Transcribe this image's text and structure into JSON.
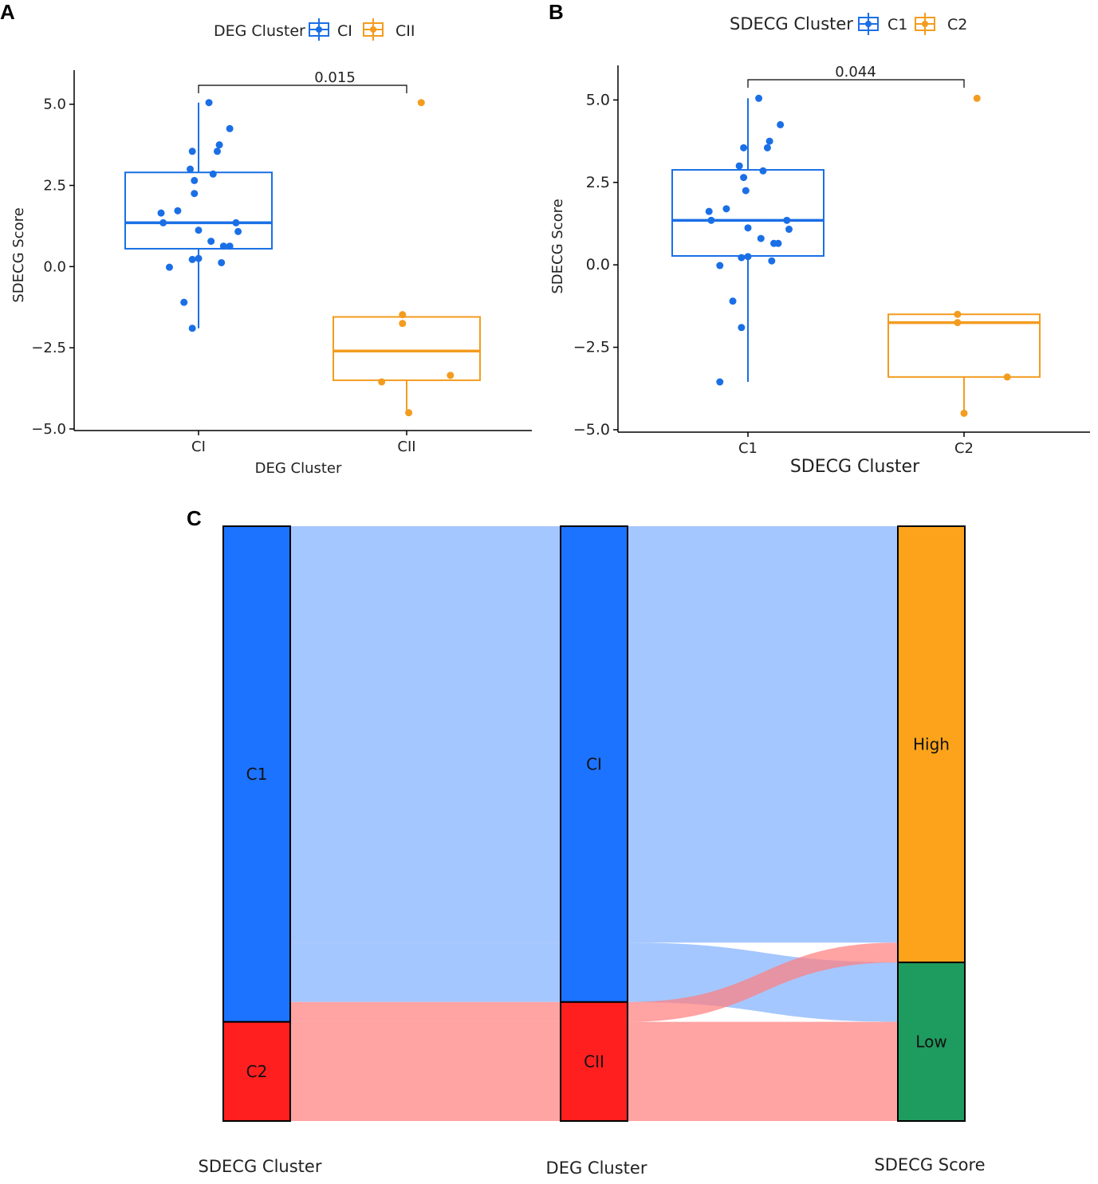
{
  "colors": {
    "blue": "#1A6FE6",
    "orange": "#F39C1F",
    "flow_blue": "#82B1FF",
    "flow_red": "#FF8080",
    "node_blue": "#1C73FF",
    "node_red": "#FF1F1F",
    "node_orange": "#FCA31B",
    "node_green": "#1E9B5E"
  },
  "chart_data": [
    {
      "panel": "A",
      "type": "box",
      "legend_title": "DEG Cluster",
      "legend": [
        "CI",
        "CII"
      ],
      "xlabel": "DEG Cluster",
      "ylabel": "SDECG Score",
      "ylim": [
        -5.0,
        6.0
      ],
      "yticks": [
        "5.0",
        "2.5",
        "0.0",
        "−2.5",
        "−5.0"
      ],
      "ytick_values": [
        5.0,
        2.5,
        0.0,
        -2.5,
        -5.0
      ],
      "categories": [
        "CI",
        "CII"
      ],
      "pvalue": "0.015",
      "boxes": [
        {
          "name": "CI",
          "color": "blue",
          "whisker_low": -1.9,
          "q1": 0.55,
          "median": 1.35,
          "q3": 2.9,
          "whisker_high": 5.05
        },
        {
          "name": "CII",
          "color": "orange",
          "whisker_low": -4.5,
          "q1": -3.5,
          "median": -2.6,
          "q3": -1.55,
          "whisker_high": -1.55
        }
      ],
      "points": [
        {
          "group": 0,
          "jitter": 0.05,
          "y": 5.05
        },
        {
          "group": 0,
          "jitter": 0.15,
          "y": 4.25
        },
        {
          "group": 0,
          "jitter": 0.1,
          "y": 3.75
        },
        {
          "group": 0,
          "jitter": -0.03,
          "y": 3.55
        },
        {
          "group": 0,
          "jitter": 0.09,
          "y": 3.55
        },
        {
          "group": 0,
          "jitter": -0.04,
          "y": 3.0
        },
        {
          "group": 0,
          "jitter": 0.07,
          "y": 2.85
        },
        {
          "group": 0,
          "jitter": -0.02,
          "y": 2.65
        },
        {
          "group": 0,
          "jitter": -0.02,
          "y": 2.25
        },
        {
          "group": 0,
          "jitter": -0.18,
          "y": 1.65
        },
        {
          "group": 0,
          "jitter": -0.1,
          "y": 1.72
        },
        {
          "group": 0,
          "jitter": -0.17,
          "y": 1.35
        },
        {
          "group": 0,
          "jitter": 0.18,
          "y": 1.35
        },
        {
          "group": 0,
          "jitter": 0.0,
          "y": 1.12
        },
        {
          "group": 0,
          "jitter": 0.19,
          "y": 1.08
        },
        {
          "group": 0,
          "jitter": 0.06,
          "y": 0.78
        },
        {
          "group": 0,
          "jitter": 0.12,
          "y": 0.63
        },
        {
          "group": 0,
          "jitter": 0.15,
          "y": 0.63
        },
        {
          "group": 0,
          "jitter": -0.03,
          "y": 0.22
        },
        {
          "group": 0,
          "jitter": 0.0,
          "y": 0.25
        },
        {
          "group": 0,
          "jitter": 0.11,
          "y": 0.12
        },
        {
          "group": 0,
          "jitter": -0.14,
          "y": -0.02
        },
        {
          "group": 0,
          "jitter": -0.07,
          "y": -1.1
        },
        {
          "group": 0,
          "jitter": -0.03,
          "y": -1.9
        },
        {
          "group": 1,
          "jitter": 0.07,
          "y": 5.05
        },
        {
          "group": 1,
          "jitter": -0.02,
          "y": -1.48
        },
        {
          "group": 1,
          "jitter": -0.02,
          "y": -1.75
        },
        {
          "group": 1,
          "jitter": 0.21,
          "y": -3.35
        },
        {
          "group": 1,
          "jitter": -0.12,
          "y": -3.55
        },
        {
          "group": 1,
          "jitter": 0.01,
          "y": -4.5
        }
      ]
    },
    {
      "panel": "B",
      "type": "box",
      "legend_title": "SDECG Cluster",
      "legend": [
        "C1",
        "C2"
      ],
      "xlabel": "SDECG Cluster",
      "ylabel": "SDECG Score",
      "ylim": [
        -5.0,
        6.0
      ],
      "yticks": [
        "5.0",
        "2.5",
        "0.0",
        "−2.5",
        "−5.0"
      ],
      "ytick_values": [
        5.0,
        2.5,
        0.0,
        -2.5,
        -5.0
      ],
      "categories": [
        "C1",
        "C2"
      ],
      "pvalue": "0.044",
      "boxes": [
        {
          "name": "C1",
          "color": "blue",
          "whisker_low": -3.55,
          "q1": 0.27,
          "median": 1.35,
          "q3": 2.88,
          "whisker_high": 5.05
        },
        {
          "name": "C2",
          "color": "orange",
          "whisker_low": -4.5,
          "q1": -3.4,
          "median": -1.75,
          "q3": -1.5,
          "whisker_high": -1.5
        }
      ],
      "points": [
        {
          "group": 0,
          "jitter": 0.05,
          "y": 5.05
        },
        {
          "group": 0,
          "jitter": 0.15,
          "y": 4.25
        },
        {
          "group": 0,
          "jitter": 0.1,
          "y": 3.75
        },
        {
          "group": 0,
          "jitter": -0.02,
          "y": 3.55
        },
        {
          "group": 0,
          "jitter": 0.09,
          "y": 3.55
        },
        {
          "group": 0,
          "jitter": -0.04,
          "y": 3.0
        },
        {
          "group": 0,
          "jitter": 0.07,
          "y": 2.85
        },
        {
          "group": 0,
          "jitter": -0.02,
          "y": 2.65
        },
        {
          "group": 0,
          "jitter": -0.01,
          "y": 2.25
        },
        {
          "group": 0,
          "jitter": -0.18,
          "y": 1.62
        },
        {
          "group": 0,
          "jitter": -0.1,
          "y": 1.7
        },
        {
          "group": 0,
          "jitter": -0.17,
          "y": 1.35
        },
        {
          "group": 0,
          "jitter": 0.18,
          "y": 1.35
        },
        {
          "group": 0,
          "jitter": 0.0,
          "y": 1.12
        },
        {
          "group": 0,
          "jitter": 0.19,
          "y": 1.08
        },
        {
          "group": 0,
          "jitter": 0.06,
          "y": 0.8
        },
        {
          "group": 0,
          "jitter": 0.12,
          "y": 0.65
        },
        {
          "group": 0,
          "jitter": 0.14,
          "y": 0.65
        },
        {
          "group": 0,
          "jitter": -0.03,
          "y": 0.22
        },
        {
          "group": 0,
          "jitter": 0.0,
          "y": 0.25
        },
        {
          "group": 0,
          "jitter": 0.11,
          "y": 0.12
        },
        {
          "group": 0,
          "jitter": -0.13,
          "y": -0.02
        },
        {
          "group": 0,
          "jitter": -0.07,
          "y": -1.1
        },
        {
          "group": 0,
          "jitter": -0.03,
          "y": -1.9
        },
        {
          "group": 0,
          "jitter": -0.13,
          "y": -3.55
        },
        {
          "group": 1,
          "jitter": 0.06,
          "y": 5.05
        },
        {
          "group": 1,
          "jitter": -0.03,
          "y": -1.5
        },
        {
          "group": 1,
          "jitter": -0.03,
          "y": -1.75
        },
        {
          "group": 1,
          "jitter": 0.2,
          "y": -3.4
        },
        {
          "group": 1,
          "jitter": 0.0,
          "y": -4.5
        }
      ]
    },
    {
      "panel": "C",
      "type": "sankey",
      "axes": [
        "SDECG Cluster",
        "DEG Cluster",
        "SDECG Score"
      ],
      "nodes": [
        {
          "axis": 0,
          "label": "C1",
          "value": 25,
          "color": "node_blue"
        },
        {
          "axis": 0,
          "label": "C2",
          "value": 5,
          "color": "node_red"
        },
        {
          "axis": 1,
          "label": "CI",
          "value": 24,
          "color": "node_blue"
        },
        {
          "axis": 1,
          "label": "CII",
          "value": 6,
          "color": "node_red"
        },
        {
          "axis": 2,
          "label": "High",
          "value": 22,
          "color": "node_orange"
        },
        {
          "axis": 2,
          "label": "Low",
          "value": 8,
          "color": "node_green"
        }
      ],
      "flows": [
        {
          "path": [
            "C1",
            "CI",
            "High"
          ],
          "value": 21,
          "color": "flow_blue"
        },
        {
          "path": [
            "C1",
            "CI",
            "Low"
          ],
          "value": 3,
          "color": "flow_blue"
        },
        {
          "path": [
            "C1",
            "CII",
            "High"
          ],
          "value": 1,
          "color": "flow_red"
        },
        {
          "path": [
            "C2",
            "CII",
            "Low"
          ],
          "value": 5,
          "color": "flow_red"
        }
      ]
    }
  ]
}
